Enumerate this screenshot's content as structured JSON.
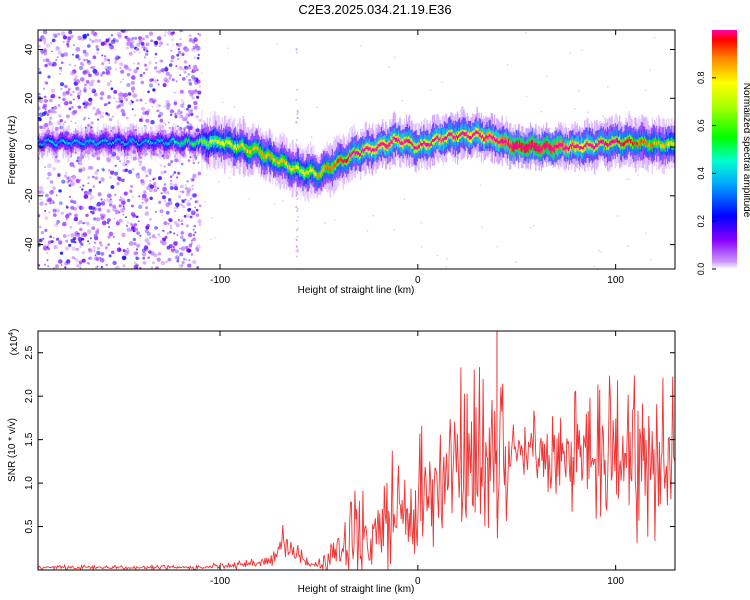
{
  "title": "C2E3.2025.034.21.19.E36",
  "chart_data": [
    {
      "type": "heatmap",
      "xlabel": "Height of straight line (km)",
      "ylabel": "Frequency (Hz)",
      "xlim": [
        -192,
        130
      ],
      "ylim": [
        -50,
        48
      ],
      "x_ticks": [
        -100,
        0,
        100
      ],
      "x_tick_labels": [
        "-100",
        "0",
        "100"
      ],
      "y_ticks": [
        40,
        20,
        0,
        -20,
        -40
      ],
      "y_tick_labels": [
        "40",
        "20",
        "0",
        "-20",
        "-40"
      ],
      "colorbar": {
        "label": "Normalized spectral amplitude",
        "range": [
          0,
          1
        ],
        "ticks": [
          0,
          0.2,
          0.4,
          0.6,
          0.8
        ],
        "tick_labels": [
          "0.0",
          "0.2",
          "0.4",
          "0.6",
          "0.8"
        ]
      },
      "noise_region_x": [
        -192,
        -110
      ],
      "ridge_frequency_profile": {
        "x": [
          -192,
          -130,
          -110,
          -100,
          -80,
          -70,
          -60,
          -50,
          -40,
          -30,
          -20,
          -10,
          0,
          10,
          20,
          30,
          40,
          50,
          60,
          70,
          80,
          90,
          100,
          110,
          120,
          130
        ],
        "freq": [
          2,
          2,
          2,
          2,
          -2,
          -6,
          -10,
          -11,
          -6,
          -2,
          0,
          3,
          0,
          3,
          5,
          5,
          3,
          0,
          0,
          0,
          0,
          1,
          2,
          2,
          1,
          1
        ],
        "amplitude": [
          0.25,
          0.25,
          0.4,
          0.5,
          0.55,
          0.55,
          0.5,
          0.55,
          0.6,
          0.7,
          0.8,
          0.75,
          0.7,
          0.75,
          0.7,
          0.8,
          0.85,
          0.95,
          0.95,
          0.9,
          0.8,
          0.7,
          0.65,
          0.6,
          0.55,
          0.5
        ]
      }
    },
    {
      "type": "line",
      "xlabel": "Height of straight line (km)",
      "ylabel": "SNR (10 * v/v)",
      "y_multiplier": "(x10",
      "y_multiplier_exp": "4",
      "xlim": [
        -192,
        130
      ],
      "ylim": [
        0,
        2.75
      ],
      "x_ticks": [
        -100,
        0,
        100
      ],
      "x_tick_labels": [
        "-100",
        "0",
        "100"
      ],
      "y_ticks": [
        0.5,
        1.0,
        1.5,
        2.0,
        2.5
      ],
      "y_tick_labels": [
        "0.5",
        "1.0",
        "1.5",
        "2.0",
        "2.5"
      ],
      "series": [
        {
          "name": "SNR",
          "color": "#ee3333",
          "x": [
            -192,
            -110,
            -100,
            -90,
            -80,
            -72,
            -68,
            -65,
            -60,
            -55,
            -50,
            -45,
            -40,
            -35,
            -30,
            -25,
            -20,
            -10,
            0,
            5,
            10,
            15,
            20,
            25,
            30,
            35,
            40,
            45,
            48,
            50,
            55,
            60,
            70,
            80,
            90,
            100,
            110,
            120,
            125,
            130
          ],
          "y_mean": [
            0.03,
            0.03,
            0.05,
            0.06,
            0.08,
            0.15,
            0.25,
            0.3,
            0.15,
            0.05,
            0.08,
            0.12,
            0.2,
            0.35,
            0.45,
            0.5,
            0.55,
            0.65,
            0.75,
            0.85,
            0.95,
            1.05,
            1.15,
            1.25,
            1.3,
            1.35,
            1.45,
            1.3,
            1.5,
            1.42,
            1.38,
            1.36,
            1.35,
            1.33,
            1.35,
            1.3,
            1.28,
            1.25,
            1.25,
            1.2
          ],
          "y_spread": [
            0.02,
            0.02,
            0.03,
            0.04,
            0.06,
            0.15,
            0.2,
            0.2,
            0.1,
            0.04,
            0.1,
            0.2,
            0.3,
            0.4,
            0.45,
            0.55,
            0.6,
            0.6,
            0.6,
            0.6,
            0.65,
            0.7,
            0.85,
            0.9,
            0.95,
            1.0,
            1.1,
            0.9,
            0.3,
            0.15,
            0.35,
            0.4,
            0.55,
            0.6,
            0.6,
            0.7,
            0.75,
            0.8,
            0.9,
            1.0
          ],
          "peak": {
            "x": 40,
            "y": 2.75
          }
        }
      ]
    }
  ]
}
